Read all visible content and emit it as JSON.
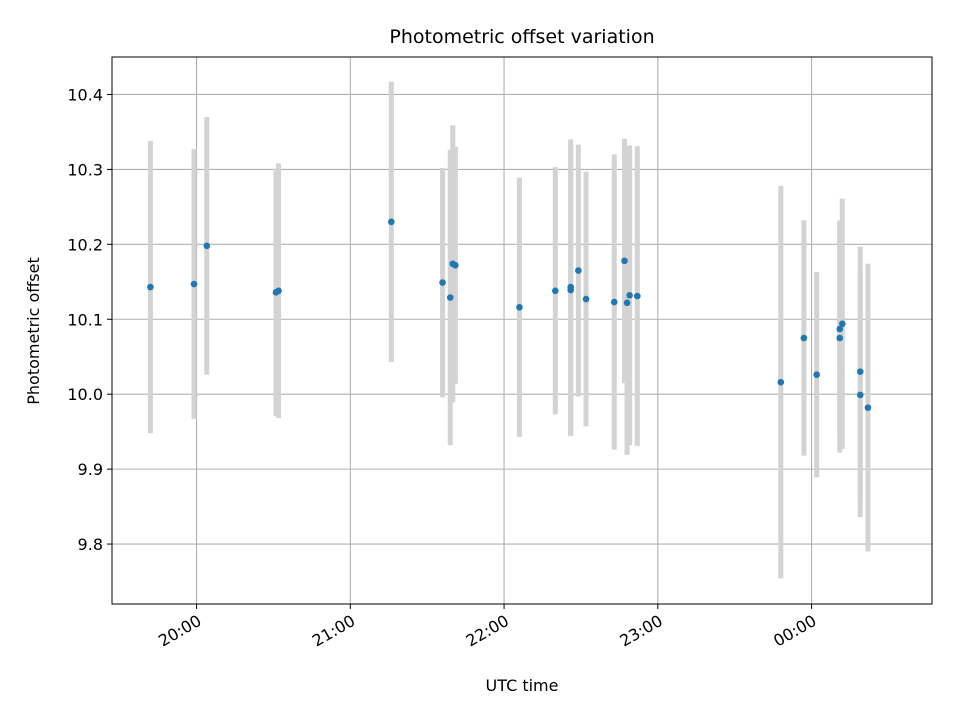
{
  "chart_data": {
    "type": "scatter",
    "title": "Photometric offset variation",
    "xlabel": "UTC time",
    "ylabel": "Photometric offset",
    "x_unit": "UTC",
    "xlim": [
      "19:27",
      "00:47"
    ],
    "ylim": [
      9.72,
      10.45
    ],
    "x_ticks": [
      "20:00",
      "21:00",
      "22:00",
      "23:00",
      "00:00"
    ],
    "y_ticks": [
      "9.8",
      "9.9",
      "10.0",
      "10.1",
      "10.2",
      "10.3",
      "10.4"
    ],
    "grid": true,
    "colors": {
      "point": "#1f77b4",
      "errorbar": "#d3d3d3",
      "grid": "#b0b0b0"
    },
    "points": [
      {
        "x": "19:42",
        "y": 10.143,
        "err": 0.195
      },
      {
        "x": "19:59",
        "y": 10.147,
        "err": 0.18
      },
      {
        "x": "20:04",
        "y": 10.198,
        "err": 0.172
      },
      {
        "x": "20:31",
        "y": 10.136,
        "err": 0.165
      },
      {
        "x": "20:32",
        "y": 10.138,
        "err": 0.17
      },
      {
        "x": "21:16",
        "y": 10.23,
        "err": 0.187
      },
      {
        "x": "21:36",
        "y": 10.149,
        "err": 0.153
      },
      {
        "x": "21:39",
        "y": 10.129,
        "err": 0.197
      },
      {
        "x": "21:40",
        "y": 10.174,
        "err": 0.185
      },
      {
        "x": "21:41",
        "y": 10.172,
        "err": 0.158
      },
      {
        "x": "22:06",
        "y": 10.116,
        "err": 0.173
      },
      {
        "x": "22:20",
        "y": 10.138,
        "err": 0.165
      },
      {
        "x": "22:26",
        "y": 10.139,
        "err": 0.195
      },
      {
        "x": "22:26",
        "y": 10.143,
        "err": 0.197
      },
      {
        "x": "22:29",
        "y": 10.165,
        "err": 0.168
      },
      {
        "x": "22:32",
        "y": 10.127,
        "err": 0.17
      },
      {
        "x": "22:43",
        "y": 10.123,
        "err": 0.197
      },
      {
        "x": "22:47",
        "y": 10.178,
        "err": 0.163
      },
      {
        "x": "22:48",
        "y": 10.122,
        "err": 0.203
      },
      {
        "x": "22:49",
        "y": 10.132,
        "err": 0.2
      },
      {
        "x": "22:52",
        "y": 10.131,
        "err": 0.2
      },
      {
        "x": "23:48",
        "y": 10.016,
        "err": 0.262
      },
      {
        "x": "23:57",
        "y": 10.075,
        "err": 0.157
      },
      {
        "x": "00:02",
        "y": 10.026,
        "err": 0.137
      },
      {
        "x": "00:11",
        "y": 10.075,
        "err": 0.153
      },
      {
        "x": "00:11",
        "y": 10.087,
        "err": 0.145
      },
      {
        "x": "00:12",
        "y": 10.094,
        "err": 0.167
      },
      {
        "x": "00:19",
        "y": 10.03,
        "err": 0.167
      },
      {
        "x": "00:19",
        "y": 9.999,
        "err": 0.163
      },
      {
        "x": "00:22",
        "y": 9.982,
        "err": 0.192
      }
    ]
  }
}
